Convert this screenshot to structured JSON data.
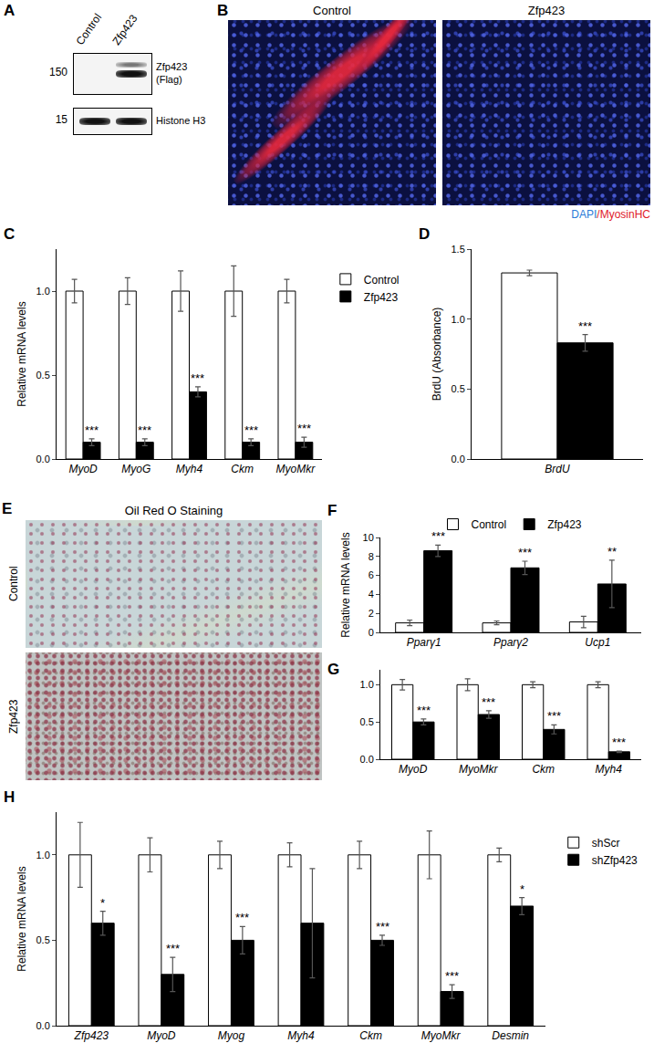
{
  "panels": {
    "blot": {
      "panel": "A",
      "columns": [
        "Control",
        "Zfp423"
      ],
      "rows": [
        {
          "size": 150,
          "label": "Zfp423 (Flag)"
        },
        {
          "size": 15,
          "label": "Histone H3"
        }
      ]
    },
    "fluorescence": {
      "panel": "B",
      "columns": [
        "Control",
        "Zfp423"
      ],
      "stain_label": "DAPI/MyosinHC"
    },
    "oil_red_o": {
      "panel": "E",
      "title": "Oil Red O Staining",
      "rows": [
        "Control",
        "Zfp423"
      ]
    }
  },
  "chart_data": [
    {
      "panel": "C",
      "type": "bar",
      "y_label": "Relative mRNA levels",
      "categories": [
        "MyoD",
        "MyoG",
        "Myh4",
        "Ckm",
        "MyoMkr"
      ],
      "series": [
        {
          "name": "Control",
          "color": "#ffffff",
          "values": [
            1,
            1,
            1,
            1,
            1
          ],
          "error": [
            0.07,
            0.08,
            0.12,
            0.15,
            0.07
          ]
        },
        {
          "name": "Zfp423",
          "color": "#000000",
          "values": [
            0.1,
            0.1,
            0.4,
            0.1,
            0.1
          ],
          "error": [
            0.02,
            0.02,
            0.03,
            0.02,
            0.03
          ],
          "significance": [
            "***",
            "***",
            "***",
            "***",
            "***"
          ]
        }
      ],
      "ylim": [
        0,
        1.25
      ],
      "yticks": [
        {
          "value": 0,
          "label": "0.0"
        },
        {
          "value": 0.5,
          "label": "0.5"
        },
        {
          "value": 1,
          "label": "1.0"
        }
      ],
      "grid": false,
      "legend": "right"
    },
    {
      "panel": "D",
      "type": "bar",
      "y_label": "BrdU (Absorbance)",
      "categories": [
        "BrdU"
      ],
      "series": [
        {
          "color": "#ffffff",
          "values": [
            1.33
          ],
          "error": [
            0.02
          ]
        },
        {
          "color": "#000000",
          "values": [
            0.83
          ],
          "error": [
            0.06
          ],
          "significance": [
            "***"
          ]
        }
      ],
      "ylim": [
        0,
        1.5
      ],
      "yticks": [
        {
          "value": 0,
          "label": "0.0"
        },
        {
          "value": 0.5,
          "label": "0.5"
        },
        {
          "value": 1,
          "label": "1.0"
        },
        {
          "value": 1.5,
          "label": "1.5"
        }
      ],
      "grid": false
    },
    {
      "panel": "F",
      "type": "bar",
      "y_label": "Relative mRNA levels",
      "categories": [
        "Pparγ1",
        "Pparγ2",
        "Ucp1"
      ],
      "series": [
        {
          "name": "Control",
          "color": "#ffffff",
          "values": [
            1,
            1,
            1.1
          ],
          "error": [
            0.3,
            0.2,
            0.6
          ]
        },
        {
          "name": "Zfp423",
          "color": "#000000",
          "values": [
            8.6,
            6.8,
            5.1
          ],
          "error": [
            0.6,
            0.7,
            2.5
          ],
          "significance": [
            "***",
            "***",
            "**"
          ]
        }
      ],
      "ylim": [
        0,
        10
      ],
      "yticks": [
        0,
        2,
        4,
        6,
        8,
        10
      ],
      "grid": false,
      "legend": "top"
    },
    {
      "panel": "G",
      "type": "bar",
      "categories": [
        "MyoD",
        "MyoMkr",
        "Ckm",
        "Myh4"
      ],
      "series": [
        {
          "color": "#ffffff",
          "values": [
            1,
            1,
            1,
            1
          ],
          "error": [
            0.07,
            0.08,
            0.04,
            0.04
          ]
        },
        {
          "color": "#000000",
          "values": [
            0.5,
            0.6,
            0.4,
            0.1
          ],
          "error": [
            0.04,
            0.05,
            0.06,
            0.01
          ],
          "significance": [
            "***",
            "***",
            "***",
            "***"
          ]
        }
      ],
      "ylim": [
        0,
        1.2
      ],
      "yticks": [
        {
          "value": 0,
          "label": "0.0"
        },
        {
          "value": 0.5,
          "label": "0.5"
        },
        {
          "value": 1,
          "label": "1.0"
        }
      ],
      "grid": false
    },
    {
      "panel": "H",
      "type": "bar",
      "y_label": "Relative mRNA levels",
      "categories": [
        "Zfp423",
        "MyoD",
        "Myog",
        "Myh4",
        "Ckm",
        "MyoMkr",
        "Desmin"
      ],
      "series": [
        {
          "name": "shScr",
          "color": "#ffffff",
          "values": [
            1,
            1,
            1,
            1,
            1,
            1,
            1
          ],
          "error": [
            0.19,
            0.1,
            0.08,
            0.07,
            0.08,
            0.14,
            0.04
          ]
        },
        {
          "name": "shZfp423",
          "color": "#000000",
          "values": [
            0.6,
            0.3,
            0.5,
            0.6,
            0.5,
            0.2,
            0.7
          ],
          "error": [
            0.07,
            0.1,
            0.08,
            0.32,
            0.03,
            0.04,
            0.05
          ],
          "significance": [
            "*",
            "***",
            "***",
            null,
            "***",
            "***",
            "*"
          ]
        }
      ],
      "ylim": [
        0,
        1.25
      ],
      "yticks": [
        {
          "value": 0,
          "label": "0.0"
        },
        {
          "value": 0.5,
          "label": "0.5"
        },
        {
          "value": 1,
          "label": "1.0"
        }
      ],
      "grid": false,
      "legend": "right"
    }
  ]
}
